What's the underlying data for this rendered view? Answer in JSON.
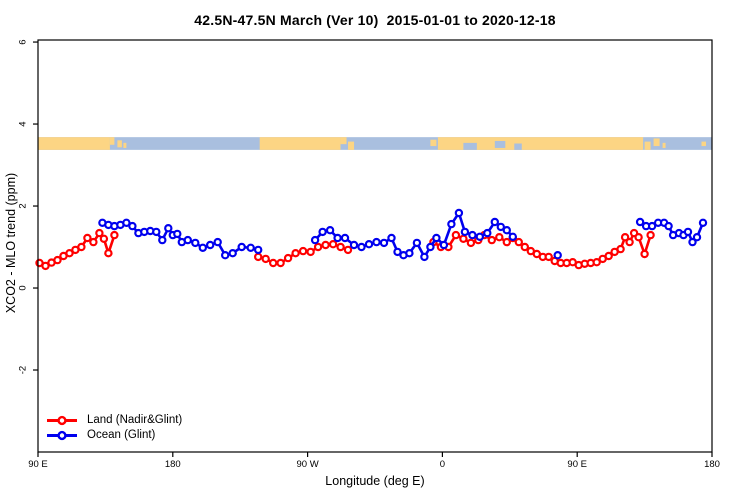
{
  "title": "42.5N-47.5N March (Ver 10)  2015-01-01 to 2020-12-18",
  "colors": {
    "land_series": "#ff0000",
    "ocean_series": "#0000ee",
    "band_land": "#fcd584",
    "band_ocean": "#a9bfdf",
    "axis": "#000000",
    "background": "#ffffff"
  },
  "legend": {
    "items": [
      {
        "label": "Land (Nadir&Glint)",
        "color": "#ff0000"
      },
      {
        "label": "Ocean (Glint)",
        "color": "#0000ee"
      }
    ]
  },
  "chart_data": {
    "type": "line",
    "title": "42.5N-47.5N March (Ver 10)  2015-01-01 to 2020-12-18",
    "xlabel": "Longitude (deg E)",
    "ylabel": "XCO2 - MLO trend (ppm)",
    "xlim": [
      90,
      540
    ],
    "ylim": [
      -4.0,
      6.05
    ],
    "grid": false,
    "legend_position": "bottom-left",
    "marker": "open-circle",
    "x_ticks": [
      {
        "value": 90,
        "label": "90 E"
      },
      {
        "value": 180,
        "label": "180"
      },
      {
        "value": 270,
        "label": "90 W"
      },
      {
        "value": 360,
        "label": "0"
      },
      {
        "value": 450,
        "label": "90 E"
      },
      {
        "value": 540,
        "label": "180"
      }
    ],
    "y_ticks": [
      {
        "value": -2,
        "label": "-2"
      },
      {
        "value": 0,
        "label": "0"
      },
      {
        "value": 2,
        "label": "2"
      },
      {
        "value": 4,
        "label": "4"
      },
      {
        "value": 6,
        "label": "6"
      }
    ],
    "map_band": {
      "description": "land/ocean coastline strip for latitude band 42.5N-47.5N",
      "y_range": [
        3.37,
        3.68
      ],
      "land_color": "#fcd584",
      "ocean_color": "#a9bfdf",
      "ocean_extent": [
        90,
        540
      ],
      "land_segments": [
        [
          90,
          138
        ],
        [
          238,
          292
        ],
        [
          357,
          494
        ]
      ],
      "patches": [
        {
          "type": "land",
          "lon": [
            138,
            141
          ],
          "f": [
            0,
            0.6
          ]
        },
        {
          "type": "land",
          "lon": [
            143,
            146
          ],
          "f": [
            0.25,
            0.8
          ]
        },
        {
          "type": "land",
          "lon": [
            147,
            149
          ],
          "f": [
            0.45,
            0.85
          ]
        },
        {
          "type": "land",
          "lon": [
            292,
            296
          ],
          "f": [
            0,
            0.55
          ]
        },
        {
          "type": "land",
          "lon": [
            297,
            301
          ],
          "f": [
            0.35,
            1
          ]
        },
        {
          "type": "land",
          "lon": [
            352,
            356
          ],
          "f": [
            0.2,
            0.7
          ]
        },
        {
          "type": "ocean",
          "lon": [
            374,
            383
          ],
          "f": [
            0.45,
            1
          ]
        },
        {
          "type": "ocean",
          "lon": [
            395,
            402
          ],
          "f": [
            0.3,
            0.85
          ]
        },
        {
          "type": "ocean",
          "lon": [
            408,
            413
          ],
          "f": [
            0.5,
            1
          ]
        },
        {
          "type": "land",
          "lon": [
            495,
            499
          ],
          "f": [
            0.35,
            1
          ]
        },
        {
          "type": "land",
          "lon": [
            501,
            505
          ],
          "f": [
            0.1,
            0.7
          ]
        },
        {
          "type": "land",
          "lon": [
            507,
            509
          ],
          "f": [
            0.45,
            0.85
          ]
        },
        {
          "type": "land",
          "lon": [
            533,
            536
          ],
          "f": [
            0.35,
            0.7
          ]
        }
      ]
    },
    "series": [
      {
        "id": "land",
        "name": "Land (Nadir&Glint)",
        "color": "#ff0000",
        "segments": [
          [
            [
              91,
              0.61
            ],
            [
              95,
              0.54
            ],
            [
              99,
              0.62
            ],
            [
              103,
              0.68
            ],
            [
              107,
              0.78
            ],
            [
              111,
              0.85
            ],
            [
              115,
              0.93
            ],
            [
              119,
              1.0
            ],
            [
              123,
              1.22
            ],
            [
              127,
              1.12
            ],
            [
              131,
              1.34
            ],
            [
              134,
              1.2
            ],
            [
              137,
              0.85
            ],
            [
              141,
              1.29
            ]
          ],
          [
            [
              237,
              0.76
            ],
            [
              242,
              0.71
            ],
            [
              247,
              0.61
            ],
            [
              252,
              0.61
            ],
            [
              257,
              0.73
            ],
            [
              262,
              0.85
            ],
            [
              267,
              0.9
            ],
            [
              272,
              0.88
            ],
            [
              277,
              1.0
            ],
            [
              282,
              1.05
            ],
            [
              287,
              1.07
            ],
            [
              292,
              1.0
            ],
            [
              297,
              0.93
            ]
          ],
          [
            [
              354,
              1.12
            ],
            [
              359,
              1.0
            ],
            [
              364,
              1.0
            ],
            [
              369,
              1.29
            ],
            [
              374,
              1.2
            ],
            [
              379,
              1.1
            ],
            [
              384,
              1.17
            ],
            [
              388,
              1.29
            ],
            [
              393,
              1.17
            ],
            [
              398,
              1.24
            ],
            [
              403,
              1.12
            ],
            [
              407,
              1.22
            ],
            [
              411,
              1.12
            ],
            [
              415,
              1.0
            ],
            [
              419,
              0.9
            ],
            [
              423,
              0.83
            ],
            [
              427,
              0.76
            ],
            [
              431,
              0.76
            ],
            [
              435,
              0.66
            ],
            [
              439,
              0.61
            ],
            [
              443,
              0.61
            ],
            [
              447,
              0.63
            ],
            [
              451,
              0.56
            ],
            [
              455,
              0.59
            ],
            [
              459,
              0.61
            ],
            [
              463,
              0.63
            ],
            [
              467,
              0.71
            ],
            [
              471,
              0.78
            ],
            [
              475,
              0.88
            ],
            [
              479,
              0.95
            ],
            [
              482,
              1.24
            ],
            [
              485,
              1.12
            ],
            [
              488,
              1.34
            ],
            [
              491,
              1.24
            ],
            [
              495,
              0.83
            ],
            [
              499,
              1.29
            ]
          ]
        ]
      },
      {
        "id": "ocean",
        "name": "Ocean (Glint)",
        "color": "#0000ee",
        "segments": [
          [
            [
              133,
              1.59
            ],
            [
              137,
              1.54
            ],
            [
              141,
              1.51
            ],
            [
              145,
              1.54
            ],
            [
              149,
              1.59
            ],
            [
              153,
              1.51
            ],
            [
              157,
              1.34
            ],
            [
              161,
              1.37
            ],
            [
              165,
              1.39
            ],
            [
              169,
              1.37
            ],
            [
              173,
              1.17
            ],
            [
              177,
              1.46
            ],
            [
              180,
              1.29
            ],
            [
              183,
              1.32
            ],
            [
              186,
              1.12
            ],
            [
              190,
              1.17
            ],
            [
              195,
              1.1
            ],
            [
              200,
              0.98
            ],
            [
              205,
              1.05
            ],
            [
              210,
              1.12
            ],
            [
              215,
              0.8
            ],
            [
              220,
              0.85
            ],
            [
              226,
              1.0
            ],
            [
              232,
              0.98
            ],
            [
              237,
              0.93
            ]
          ],
          [
            [
              275,
              1.17
            ],
            [
              280,
              1.37
            ],
            [
              285,
              1.41
            ],
            [
              290,
              1.22
            ],
            [
              295,
              1.22
            ],
            [
              301,
              1.05
            ],
            [
              306,
              1.0
            ],
            [
              311,
              1.07
            ],
            [
              316,
              1.12
            ],
            [
              321,
              1.1
            ],
            [
              326,
              1.22
            ],
            [
              330,
              0.88
            ],
            [
              334,
              0.8
            ],
            [
              338,
              0.85
            ],
            [
              343,
              1.1
            ],
            [
              348,
              0.76
            ],
            [
              352,
              1.0
            ],
            [
              356,
              1.22
            ],
            [
              361,
              1.05
            ],
            [
              366,
              1.56
            ],
            [
              371,
              1.83
            ],
            [
              375,
              1.37
            ],
            [
              380,
              1.29
            ],
            [
              385,
              1.25
            ],
            [
              390,
              1.34
            ],
            [
              395,
              1.61
            ],
            [
              399,
              1.49
            ],
            [
              403,
              1.41
            ],
            [
              407,
              1.25
            ]
          ],
          [
            [
              437,
              0.8
            ]
          ],
          [
            [
              492,
              1.61
            ],
            [
              496,
              1.51
            ],
            [
              500,
              1.51
            ],
            [
              504,
              1.59
            ],
            [
              508,
              1.59
            ],
            [
              511,
              1.51
            ],
            [
              514,
              1.29
            ],
            [
              518,
              1.34
            ],
            [
              521,
              1.29
            ],
            [
              524,
              1.37
            ],
            [
              527,
              1.12
            ],
            [
              530,
              1.24
            ],
            [
              534,
              1.59
            ]
          ]
        ]
      }
    ]
  }
}
